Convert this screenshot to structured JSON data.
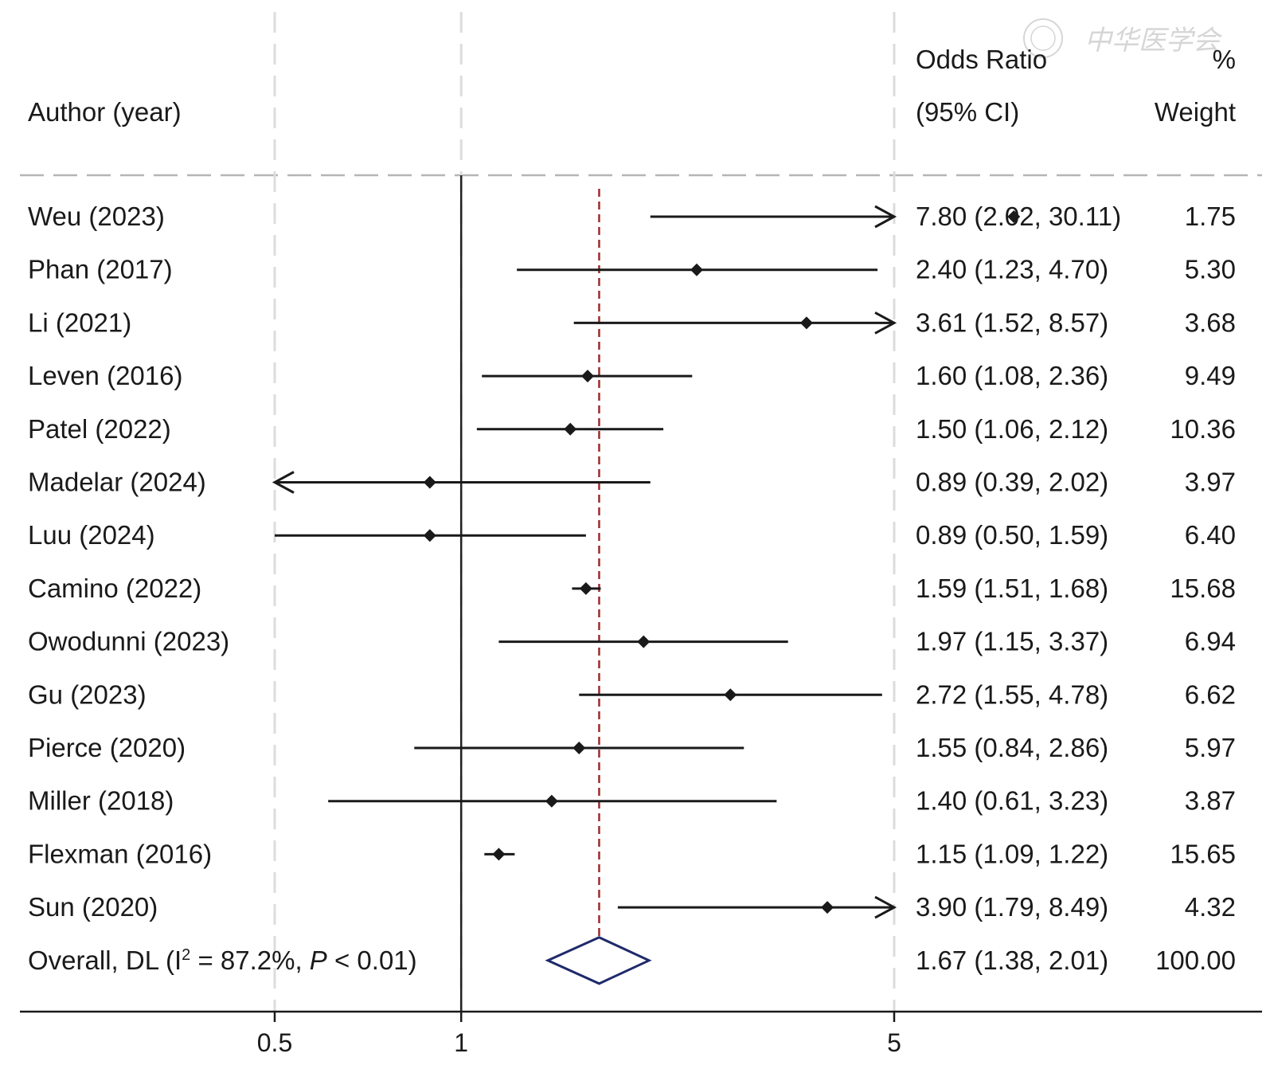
{
  "header": {
    "author_col": "Author (year)",
    "or_line1": "Odds Ratio",
    "or_line2": "(95% CI)",
    "weight_line1": "%",
    "weight_line2": "Weight"
  },
  "watermark": "中华医学会",
  "chart_data": {
    "type": "forest",
    "x_scale": "log",
    "xlim": [
      0.5,
      5
    ],
    "x_ticks": [
      0.5,
      1,
      5
    ],
    "x_tick_labels": [
      "0.5",
      "1",
      "5"
    ],
    "null_line": 1,
    "pooled_line": 1.67,
    "studies": [
      {
        "label": "Weu (2023)",
        "or": 7.8,
        "lo": 2.02,
        "hi": 30.11,
        "or_text": "7.80 (2.02, 30.11)",
        "weight": "1.75"
      },
      {
        "label": "Phan (2017)",
        "or": 2.4,
        "lo": 1.23,
        "hi": 4.7,
        "or_text": "2.40 (1.23, 4.70)",
        "weight": "5.30"
      },
      {
        "label": "Li (2021)",
        "or": 3.61,
        "lo": 1.52,
        "hi": 8.57,
        "or_text": "3.61 (1.52, 8.57)",
        "weight": "3.68"
      },
      {
        "label": "Leven (2016)",
        "or": 1.6,
        "lo": 1.08,
        "hi": 2.36,
        "or_text": "1.60 (1.08, 2.36)",
        "weight": "9.49"
      },
      {
        "label": "Patel (2022)",
        "or": 1.5,
        "lo": 1.06,
        "hi": 2.12,
        "or_text": "1.50 (1.06, 2.12)",
        "weight": "10.36"
      },
      {
        "label": "Madelar (2024)",
        "or": 0.89,
        "lo": 0.39,
        "hi": 2.02,
        "or_text": "0.89 (0.39, 2.02)",
        "weight": "3.97"
      },
      {
        "label": "Luu (2024)",
        "or": 0.89,
        "lo": 0.5,
        "hi": 1.59,
        "or_text": "0.89 (0.50, 1.59)",
        "weight": "6.40"
      },
      {
        "label": "Camino (2022)",
        "or": 1.59,
        "lo": 1.51,
        "hi": 1.68,
        "or_text": "1.59 (1.51, 1.68)",
        "weight": "15.68"
      },
      {
        "label": "Owodunni (2023)",
        "or": 1.97,
        "lo": 1.15,
        "hi": 3.37,
        "or_text": "1.97 (1.15, 3.37)",
        "weight": "6.94"
      },
      {
        "label": "Gu (2023)",
        "or": 2.72,
        "lo": 1.55,
        "hi": 4.78,
        "or_text": "2.72 (1.55, 4.78)",
        "weight": "6.62"
      },
      {
        "label": "Pierce (2020)",
        "or": 1.55,
        "lo": 0.84,
        "hi": 2.86,
        "or_text": "1.55 (0.84, 2.86)",
        "weight": "5.97"
      },
      {
        "label": "Miller (2018)",
        "or": 1.4,
        "lo": 0.61,
        "hi": 3.23,
        "or_text": "1.40 (0.61, 3.23)",
        "weight": "3.87"
      },
      {
        "label": "Flexman (2016)",
        "or": 1.15,
        "lo": 1.09,
        "hi": 1.22,
        "or_text": "1.15 (1.09, 1.22)",
        "weight": "15.65"
      },
      {
        "label": "Sun (2020)",
        "or": 3.9,
        "lo": 1.79,
        "hi": 8.49,
        "or_text": "3.90 (1.79, 8.49)",
        "weight": "4.32"
      }
    ],
    "overall": {
      "label_prefix": "Overall, DL (I",
      "label_sup": "2",
      "label_mid": " = 87.2%, ",
      "label_p": "P",
      "label_suffix": " < 0.01)",
      "or": 1.67,
      "lo": 1.38,
      "hi": 2.01,
      "or_text": "1.67 (1.38, 2.01)",
      "weight": "100.00"
    }
  }
}
